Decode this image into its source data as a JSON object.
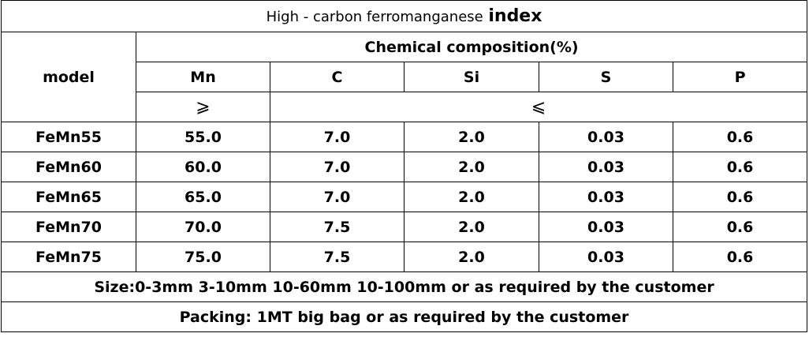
{
  "title": {
    "main": "High - carbon ferromanganese",
    "emphasis": "index"
  },
  "table": {
    "model_header": "model",
    "group_header": "Chemical composition(%)",
    "columns": [
      "Mn",
      "C",
      "Si",
      "S",
      "P"
    ],
    "limits": [
      "⩾",
      "⩽"
    ],
    "rows": [
      [
        "FeMn55",
        "55.0",
        "7.0",
        "2.0",
        "0.03",
        "0.6"
      ],
      [
        "FeMn60",
        "60.0",
        "7.0",
        "2.0",
        "0.03",
        "0.6"
      ],
      [
        "FeMn65",
        "65.0",
        "7.0",
        "2.0",
        "0.03",
        "0.6"
      ],
      [
        "FeMn70",
        "70.0",
        "7.5",
        "2.0",
        "0.03",
        "0.6"
      ],
      [
        "FeMn75",
        "75.0",
        "7.5",
        "2.0",
        "0.03",
        "0.6"
      ]
    ]
  },
  "footer": {
    "size": "Size:0-3mm 3-10mm 10-60mm 10-100mm or as required by the customer",
    "packing": "Packing: 1MT big bag or as required by the customer"
  }
}
